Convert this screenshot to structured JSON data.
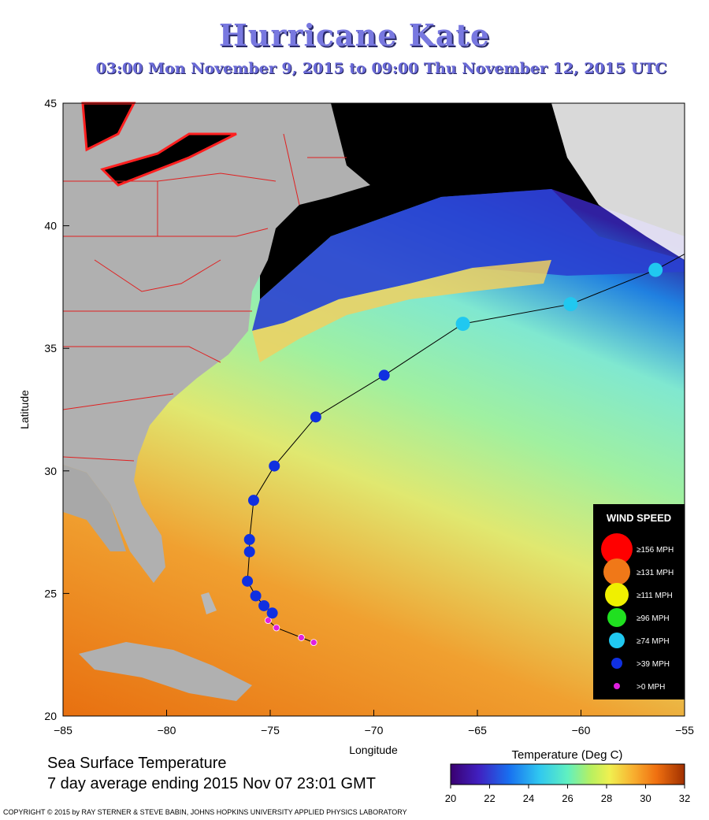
{
  "title": "Hurricane Kate",
  "subtitle": "03:00 Mon November  9, 2015 to 09:00 Thu November 12, 2015  UTC",
  "axes": {
    "xlabel": "Longitude",
    "ylabel": "Latitude",
    "xticks": [
      -85,
      -80,
      -75,
      -70,
      -65,
      -60,
      -55
    ],
    "yticks": [
      20,
      25,
      30,
      35,
      40,
      45
    ],
    "xlim": [
      -85,
      -55
    ],
    "ylim": [
      20,
      45
    ]
  },
  "legend": {
    "title": "WIND SPEED",
    "placement": "lower-right",
    "items": [
      {
        "label": "≥156 MPH",
        "color": "#ff0000"
      },
      {
        "label": "≥131 MPH",
        "color": "#f07818"
      },
      {
        "label": "≥111 MPH",
        "color": "#f0f000"
      },
      {
        "label": "≥96 MPH",
        "color": "#20e020"
      },
      {
        "label": "≥74 MPH",
        "color": "#20c8f0"
      },
      {
        "label": ">39 MPH",
        "color": "#1030e0"
      },
      {
        "label": ">0 MPH",
        "color": "#e020e0"
      }
    ]
  },
  "colorbar": {
    "label": "Temperature (Deg C)",
    "ticks": [
      20,
      22,
      24,
      26,
      28,
      30,
      32
    ],
    "range": [
      20,
      32
    ]
  },
  "info_line1": "Sea Surface Temperature",
  "info_line2": "7 day average ending 2015 Nov 07 23:01 GMT",
  "copyright": "COPYRIGHT © 2015 by RAY STERNER & STEVE BABIN, JOHNS HOPKINS UNIVERSITY APPLIED PHYSICS LABORATORY",
  "chart_data": {
    "type": "scatter",
    "series": [
      {
        "name": "Track",
        "points": [
          {
            "lon": -72.9,
            "lat": 23.0,
            "cat": ">0 MPH"
          },
          {
            "lon": -73.5,
            "lat": 23.2,
            "cat": ">0 MPH"
          },
          {
            "lon": -74.7,
            "lat": 23.6,
            "cat": ">0 MPH"
          },
          {
            "lon": -75.1,
            "lat": 23.9,
            "cat": ">0 MPH"
          },
          {
            "lon": -74.9,
            "lat": 24.2,
            "cat": ">39 MPH"
          },
          {
            "lon": -75.3,
            "lat": 24.5,
            "cat": ">39 MPH"
          },
          {
            "lon": -75.7,
            "lat": 24.9,
            "cat": ">39 MPH"
          },
          {
            "lon": -76.1,
            "lat": 25.5,
            "cat": ">39 MPH"
          },
          {
            "lon": -76.0,
            "lat": 26.7,
            "cat": ">39 MPH"
          },
          {
            "lon": -76.0,
            "lat": 27.2,
            "cat": ">39 MPH"
          },
          {
            "lon": -75.8,
            "lat": 28.8,
            "cat": ">39 MPH"
          },
          {
            "lon": -74.8,
            "lat": 30.2,
            "cat": ">39 MPH"
          },
          {
            "lon": -72.8,
            "lat": 32.2,
            "cat": ">39 MPH"
          },
          {
            "lon": -69.5,
            "lat": 33.9,
            "cat": ">39 MPH"
          },
          {
            "lon": -65.7,
            "lat": 36.0,
            "cat": "≥74 MPH"
          },
          {
            "lon": -60.5,
            "lat": 36.8,
            "cat": "≥74 MPH"
          },
          {
            "lon": -56.4,
            "lat": 38.2,
            "cat": "≥74 MPH"
          }
        ]
      }
    ]
  }
}
